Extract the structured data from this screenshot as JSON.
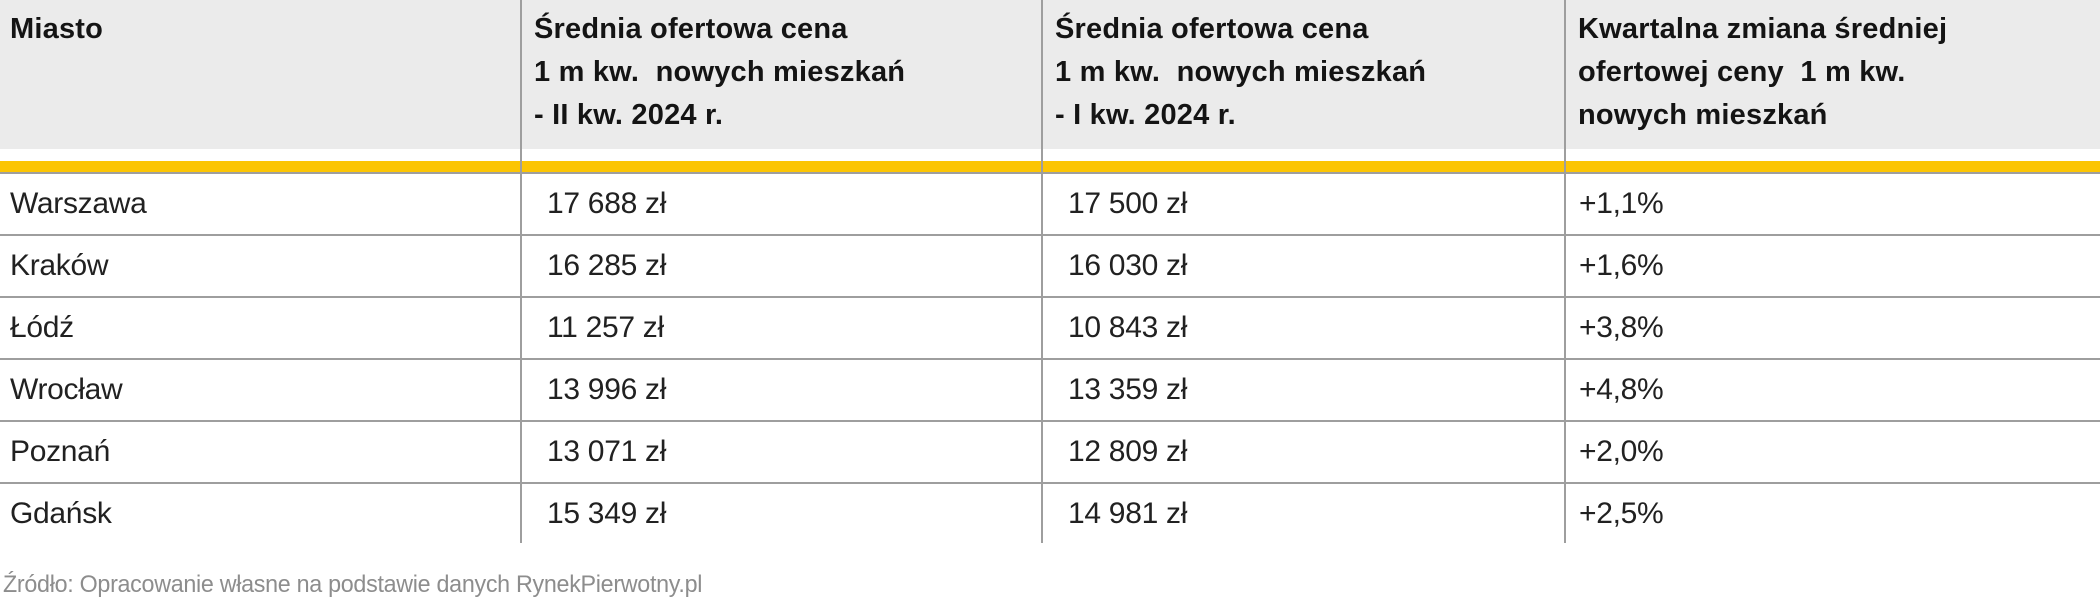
{
  "table": {
    "columns": [
      {
        "label": "Miasto"
      },
      {
        "label": "Średnia ofertowa cena\n1 m kw.  nowych mieszkań\n- II kw. 2024 r."
      },
      {
        "label": "Średnia ofertowa cena\n1 m kw.  nowych mieszkań\n- I kw. 2024 r."
      },
      {
        "label": "Kwartalna zmiana średniej\nofertowej ceny  1 m kw.\nnowych mieszkań"
      }
    ],
    "rows": [
      {
        "city": "Warszawa",
        "price_q2": "17 688 zł",
        "price_q1": "17 500 zł",
        "change": "+1,1%"
      },
      {
        "city": "Kraków",
        "price_q2": "16 285 zł",
        "price_q1": "16 030 zł",
        "change": "+1,6%"
      },
      {
        "city": "Łódź",
        "price_q2": "11 257 zł",
        "price_q1": "10 843 zł",
        "change": "+3,8%"
      },
      {
        "city": "Wrocław",
        "price_q2": "13 996 zł",
        "price_q1": "13 359 zł",
        "change": "+4,8%"
      },
      {
        "city": "Poznań",
        "price_q2": "13 071 zł",
        "price_q1": "12 809 zł",
        "change": "+2,0%"
      },
      {
        "city": "Gdańsk",
        "price_q2": "15 349 zł",
        "price_q1": "14 981 zł",
        "change": "+2,5%"
      }
    ]
  },
  "footer": {
    "source": "Źródło: Opracowanie własne na podstawie danych RynekPierwotny.pl"
  },
  "colors": {
    "accent_yellow": "#fcc503",
    "header_background": "#ebebeb",
    "grid_line": "#9e9e9e",
    "text": "#212121",
    "source_text": "#8d8d8d"
  }
}
